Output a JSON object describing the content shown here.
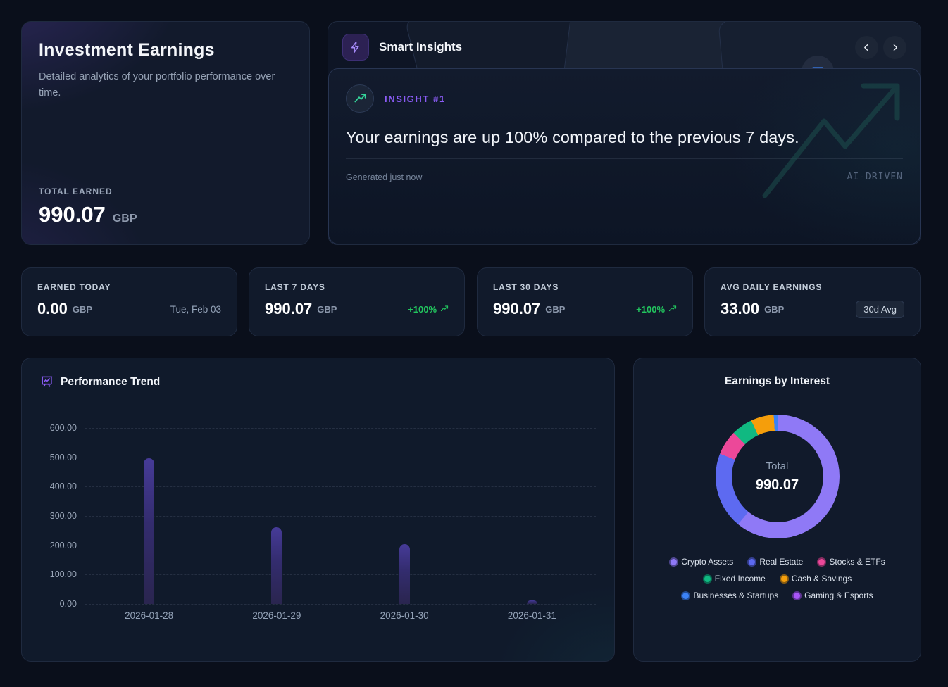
{
  "earnings_card": {
    "title": "Investment Earnings",
    "description": "Detailed analytics of your portfolio performance over time.",
    "total_label": "TOTAL EARNED",
    "total_value": "990.07",
    "currency": "GBP"
  },
  "insights": {
    "title": "Smart Insights",
    "prev_button": "‹",
    "next_button": "›",
    "insight_label": "INSIGHT #1",
    "message": "Your earnings are up 100% compared to the previous 7 days.",
    "generated": "Generated just now",
    "watermark": "AI-DRIVEN"
  },
  "stats": [
    {
      "label": "EARNED TODAY",
      "value": "0.00",
      "unit": "GBP",
      "meta": "Tue, Feb 03",
      "meta_type": "date"
    },
    {
      "label": "LAST 7 DAYS",
      "value": "990.07",
      "unit": "GBP",
      "meta": "+100%",
      "meta_type": "positive"
    },
    {
      "label": "LAST 30 DAYS",
      "value": "990.07",
      "unit": "GBP",
      "meta": "+100%",
      "meta_type": "positive"
    },
    {
      "label": "AVG DAILY EARNINGS",
      "value": "33.00",
      "unit": "GBP",
      "meta": "30d Avg",
      "meta_type": "badge"
    }
  ],
  "colors": {
    "accent_purple": "#8b5cf6",
    "positive_green": "#22c55e",
    "bar_top": "#463b98",
    "bar_bottom": "#2a254f"
  },
  "chart_data": [
    {
      "type": "bar",
      "title": "Performance Trend",
      "categories": [
        "2026-01-28",
        "2026-01-29",
        "2026-01-30",
        "2026-01-31"
      ],
      "values": [
        497,
        262,
        203,
        13
      ],
      "ylim": [
        0,
        600
      ],
      "ytick_step": 100,
      "ytick_format_decimals": 2,
      "grid": true,
      "legend": "none"
    },
    {
      "type": "pie",
      "subtype": "donut",
      "title": "Earnings by Interest",
      "center_label": "Total",
      "center_value": "990.07",
      "legend_position": "bottom",
      "segments": [
        {
          "label": "Crypto Assets",
          "percent": 61.0,
          "color": "#8f79f6"
        },
        {
          "label": "Real Estate",
          "percent": 20.0,
          "color": "#5d6af1"
        },
        {
          "label": "Stocks & ETFs",
          "percent": 6.5,
          "color": "#ec4899"
        },
        {
          "label": "Fixed Income",
          "percent": 5.5,
          "color": "#10b981"
        },
        {
          "label": "Cash & Savings",
          "percent": 6.0,
          "color": "#f59e0b"
        },
        {
          "label": "Businesses & Startups",
          "percent": 1.0,
          "color": "#3b82f6"
        },
        {
          "label": "Gaming & Esports",
          "percent": 0.0,
          "color": "#a855f7"
        }
      ]
    }
  ]
}
